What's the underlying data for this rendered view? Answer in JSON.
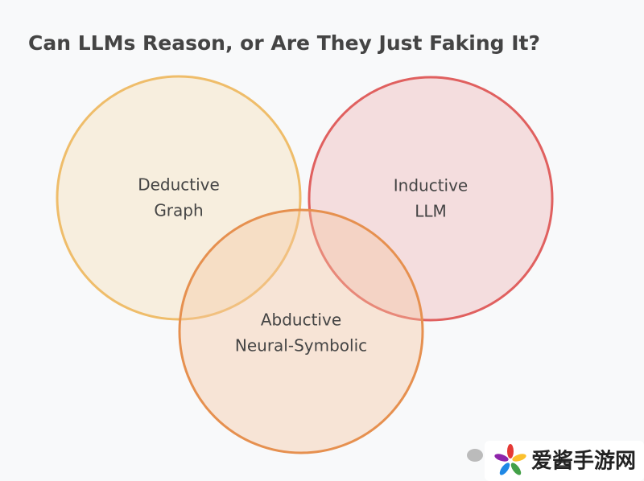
{
  "title": "Can LLMs Reason, or Are They Just Faking It?",
  "circles": [
    {
      "label": [
        "Deductive",
        "Graph"
      ]
    },
    {
      "label": [
        "Inductive",
        "LLM"
      ]
    },
    {
      "label": [
        "Abductive",
        "Neural-Symbolic"
      ]
    }
  ],
  "watermark": "爱酱手游网"
}
